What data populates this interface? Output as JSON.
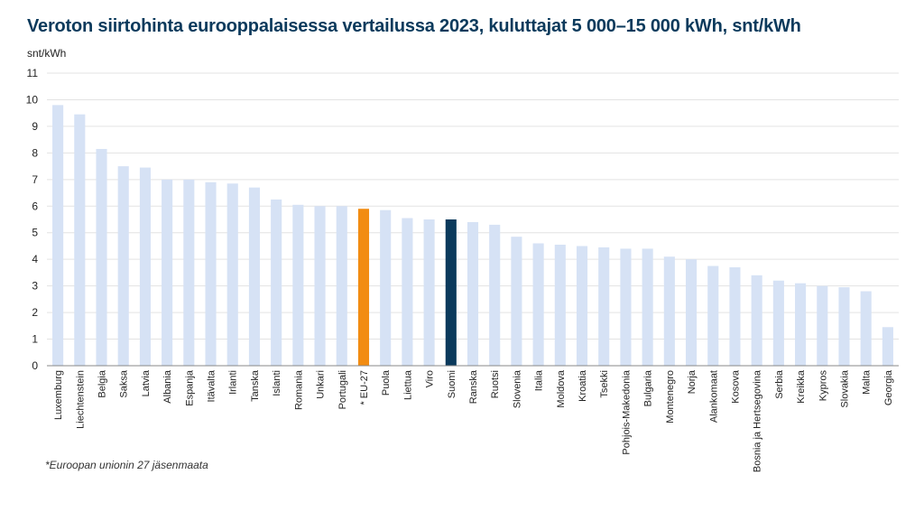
{
  "title": "Veroton siirtohinta eurooppalaisessa vertailussa 2023, kuluttajat 5 000–15 000 kWh, snt/kWh",
  "unit_label": "snt/kWh",
  "footnote": "*Euroopan unionin 27 jäsenmaata",
  "colors": {
    "default_bar": "#d6e2f5",
    "eu_bar": "#f28c12",
    "finland_bar": "#0b3a5c",
    "grid": "#e3e3e3",
    "axis": "#888888",
    "title": "#0b3a5c"
  },
  "chart_data": {
    "type": "bar",
    "title": "Veroton siirtohinta eurooppalaisessa vertailussa 2023, kuluttajat 5 000–15 000 kWh, snt/kWh",
    "xlabel": "",
    "ylabel": "snt/kWh",
    "ylim": [
      0,
      11
    ],
    "yticks": [
      0,
      1,
      2,
      3,
      4,
      5,
      6,
      7,
      8,
      9,
      10,
      11
    ],
    "grid": true,
    "legend": "none",
    "categories": [
      "Luxemburg",
      "Liechtenstein",
      "Belgia",
      "Saksa",
      "Latvia",
      "Albania",
      "Espanja",
      "Itävalta",
      "Irlanti",
      "Tanska",
      "Islanti",
      "Romania",
      "Unkari",
      "Portugali",
      "* EU-27",
      "Puola",
      "Liettua",
      "Viro",
      "Suomi",
      "Ranska",
      "Ruotsi",
      "Slovenia",
      "Italia",
      "Moldova",
      "Kroatia",
      "Tsekki",
      "Pohjois-Makedonia",
      "Bulgaria",
      "Montenegro",
      "Norja",
      "Alankomaat",
      "Kosova",
      "Bosnia ja Hertsegovina",
      "Serbia",
      "Kreikka",
      "Kypros",
      "Slovakia",
      "Malta",
      "Georgia"
    ],
    "values": [
      9.8,
      9.45,
      8.15,
      7.5,
      7.45,
      7.0,
      7.0,
      6.9,
      6.85,
      6.7,
      6.25,
      6.05,
      6.0,
      6.0,
      5.9,
      5.85,
      5.55,
      5.5,
      5.5,
      5.4,
      5.3,
      4.85,
      4.6,
      4.55,
      4.5,
      4.45,
      4.4,
      4.4,
      4.1,
      4.0,
      3.75,
      3.7,
      3.4,
      3.2,
      3.1,
      3.0,
      2.95,
      2.8,
      1.45
    ],
    "highlights": {
      "* EU-27": "eu_bar",
      "Suomi": "finland_bar"
    }
  }
}
